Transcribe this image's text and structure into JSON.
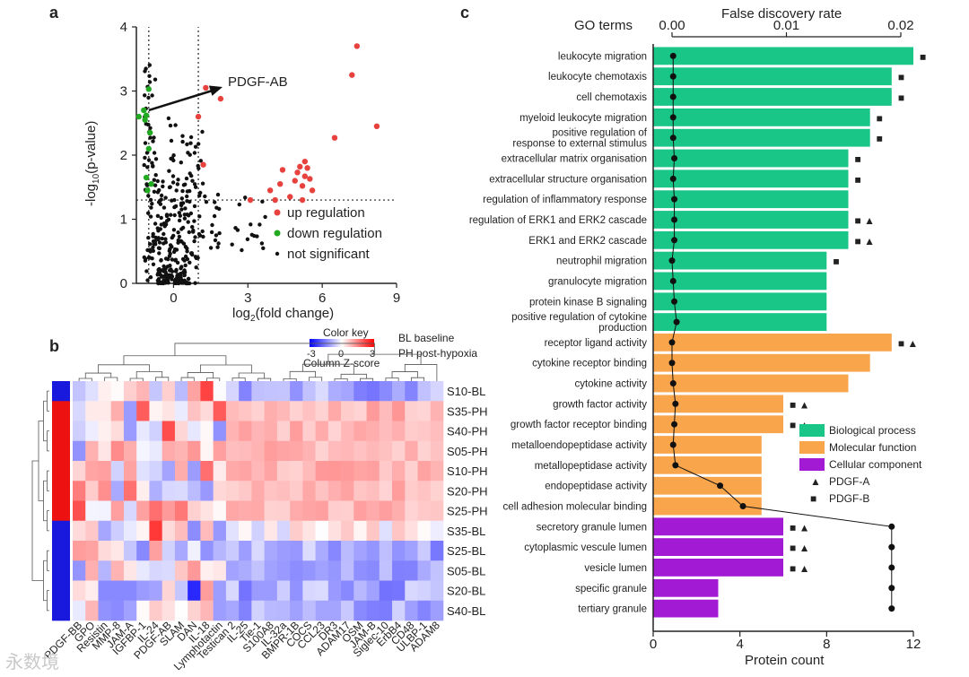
{
  "panel_labels": {
    "a": "a",
    "b": "b",
    "c": "c"
  },
  "watermark": "永数境",
  "chart_data": [
    {
      "id": "volcano",
      "type": "scatter",
      "xlabel": "log2(fold change)",
      "xlabel_main": "log",
      "xlabel_sub": "2",
      "xlabel_rest": "(fold change)",
      "ylabel": "-log10(p-value)",
      "ylabel_main": "-log",
      "ylabel_sub": "10",
      "ylabel_rest": "(p-value)",
      "xlim": [
        -1.5,
        9
      ],
      "ylim": [
        0,
        4
      ],
      "xticks": [
        0,
        3,
        6,
        9
      ],
      "yticks": [
        0,
        1,
        2,
        3,
        4
      ],
      "thresholds": {
        "x": [
          -1,
          1
        ],
        "y": 1.3
      },
      "annotation": "PDGF-AB",
      "annotation_target": [
        1.6,
        3.1
      ],
      "annotation_from": [
        -1.0,
        2.7
      ],
      "colors": {
        "up": "#e8423f",
        "down": "#22aa22",
        "ns": "#111111"
      },
      "legend": [
        {
          "key": "up",
          "label": "up regulation"
        },
        {
          "key": "down",
          "label": "down regulation"
        },
        {
          "key": "ns",
          "label": "not significant"
        }
      ],
      "up": [
        [
          7.4,
          3.7
        ],
        [
          7.2,
          3.25
        ],
        [
          8.2,
          2.45
        ],
        [
          6.5,
          2.27
        ],
        [
          1.0,
          2.6
        ],
        [
          1.2,
          1.85
        ],
        [
          1.9,
          2.88
        ],
        [
          1.3,
          3.05
        ],
        [
          4.4,
          1.77
        ],
        [
          5.3,
          1.9
        ],
        [
          5.1,
          1.82
        ],
        [
          5.4,
          1.8
        ],
        [
          5.0,
          1.73
        ],
        [
          5.3,
          1.67
        ],
        [
          5.5,
          1.63
        ],
        [
          4.9,
          1.6
        ],
        [
          5.2,
          1.52
        ],
        [
          4.3,
          1.55
        ],
        [
          5.6,
          1.45
        ],
        [
          4.7,
          1.35
        ],
        [
          4.1,
          1.3
        ],
        [
          5.2,
          1.3
        ],
        [
          3.1,
          1.3
        ],
        [
          3.9,
          1.45
        ]
      ],
      "down": [
        [
          -1.0,
          3.03
        ],
        [
          -1.1,
          2.62
        ],
        [
          -1.4,
          2.6
        ],
        [
          -1.2,
          2.7
        ],
        [
          -1.0,
          2.1
        ],
        [
          -1.1,
          1.65
        ],
        [
          -0.9,
          1.55
        ],
        [
          -1.05,
          1.45
        ],
        [
          -0.95,
          2.35
        ],
        [
          -1.15,
          2.55
        ]
      ],
      "ns_seed": 7,
      "ns_count": 360
    },
    {
      "id": "heatmap",
      "type": "heatmap",
      "color_key": {
        "title": "Color key",
        "min": -3,
        "max": 3,
        "subtitle": "Column Z-score",
        "tick_min": "-3",
        "tick_zero": "0",
        "tick_max": "3"
      },
      "legend_text": [
        "BL baseline",
        "PH post-hypoxia"
      ],
      "rows": [
        "S10-BL",
        "S35-PH",
        "S40-PH",
        "S05-PH",
        "S10-PH",
        "S20-PH",
        "S25-PH",
        "S35-BL",
        "S25-BL",
        "S05-BL",
        "S20-BL",
        "S40-BL"
      ],
      "row_groups": [
        "BL",
        "PH",
        "PH",
        "PH",
        "PH",
        "PH",
        "PH",
        "BL",
        "BL",
        "BL",
        "BL",
        "BL"
      ],
      "group_colors": {
        "BL": "#1919dd",
        "PH": "#ee1111"
      },
      "columns": [
        "PDGF-BB",
        "GPO",
        "Resistin",
        "MMP-8",
        "JAM-A",
        "IGFBP-1",
        "IL-24",
        "PDGF-AB",
        "SLAM",
        "DAN",
        "IL-18",
        "Lymphotactin",
        "Testican 2",
        "IL-25",
        "Tie-1",
        "S100A8",
        "IL-32a",
        "BMPR-1B",
        "COCS",
        "CCL23",
        "DR3",
        "ADAM17",
        "OSM",
        "JAM-B",
        "Siglec-10",
        "ErbB4",
        "CD48",
        "ULBP-1",
        "ADAM8"
      ]
    },
    {
      "id": "go",
      "type": "bar",
      "title_left": "GO terms",
      "xlabel": "Protein count",
      "xlim": [
        0,
        12
      ],
      "xticks": [
        0,
        4,
        8,
        12
      ],
      "top_axis": {
        "label": "False discovery rate",
        "lim": [
          0,
          0.02
        ],
        "ticks": [
          "0.00",
          "0.01",
          "0.02"
        ]
      },
      "category_colors": {
        "BP": "#19c587",
        "MF": "#f9a54c",
        "CC": "#a21ad4"
      },
      "legend": [
        {
          "key": "BP",
          "label": "Biological process"
        },
        {
          "key": "MF",
          "label": "Molecular function"
        },
        {
          "key": "CC",
          "label": "Cellular component"
        },
        {
          "key": "A",
          "label": "PDGF-A",
          "symbol": "▲"
        },
        {
          "key": "B",
          "label": "PDGF-B",
          "symbol": "■"
        }
      ],
      "terms": [
        {
          "label": "leukocyte migration",
          "cat": "BP",
          "count": 12,
          "fdr": 0.0001,
          "markers": "■"
        },
        {
          "label": "leukocyte chemotaxis",
          "cat": "BP",
          "count": 11,
          "fdr": 0.0001,
          "markers": "■"
        },
        {
          "label": "cell chemotaxis",
          "cat": "BP",
          "count": 11,
          "fdr": 0.0001,
          "markers": "■"
        },
        {
          "label": "myeloid leukocyte migration",
          "cat": "BP",
          "count": 10,
          "fdr": 0.0001,
          "markers": "■"
        },
        {
          "label": "positive regulation of",
          "label2": "response to external stimulus",
          "cat": "BP",
          "count": 10,
          "fdr": 0.0001,
          "markers": "■"
        },
        {
          "label": "extracellular matrix organisation",
          "cat": "BP",
          "count": 9,
          "fdr": 0.0002,
          "markers": "■"
        },
        {
          "label": "extracellular structure organisation",
          "cat": "BP",
          "count": 9,
          "fdr": 0.0001,
          "markers": "■"
        },
        {
          "label": "regulation of inflammatory response",
          "cat": "BP",
          "count": 9,
          "fdr": 0.0002,
          "markers": ""
        },
        {
          "label": "regulation of ERK1 and ERK2 cascade",
          "cat": "BP",
          "count": 9,
          "fdr": 0.0002,
          "markers": "■ ▲"
        },
        {
          "label": "ERK1 and ERK2 cascade",
          "cat": "BP",
          "count": 9,
          "fdr": 0.0002,
          "markers": "■ ▲"
        },
        {
          "label": "neutrophil migration",
          "cat": "BP",
          "count": 8,
          "fdr": 0.0,
          "markers": "■"
        },
        {
          "label": "granulocyte migration",
          "cat": "BP",
          "count": 8,
          "fdr": 0.0001,
          "markers": ""
        },
        {
          "label": "protein kinase B signaling",
          "cat": "BP",
          "count": 8,
          "fdr": 0.0002,
          "markers": ""
        },
        {
          "label": "positive regulation of cytokine",
          "label2": "production",
          "cat": "BP",
          "count": 8,
          "fdr": 0.0004,
          "markers": ""
        },
        {
          "label": "receptor ligand activity",
          "cat": "MF",
          "count": 11,
          "fdr": 0.0,
          "markers": "■ ▲"
        },
        {
          "label": "cytokine receptor binding",
          "cat": "MF",
          "count": 10,
          "fdr": 0.0,
          "markers": ""
        },
        {
          "label": "cytokine activity",
          "cat": "MF",
          "count": 9,
          "fdr": 0.0001,
          "markers": ""
        },
        {
          "label": "growth factor activity",
          "cat": "MF",
          "count": 6,
          "fdr": 0.0003,
          "markers": "■ ▲"
        },
        {
          "label": "growth factor receptor binding",
          "cat": "MF",
          "count": 6,
          "fdr": 0.0002,
          "markers": "■ ▲"
        },
        {
          "label": "metalloendopeptidase activity",
          "cat": "MF",
          "count": 5,
          "fdr": 0.0001,
          "markers": ""
        },
        {
          "label": "metallopeptidase activity",
          "cat": "MF",
          "count": 5,
          "fdr": 0.0003,
          "markers": ""
        },
        {
          "label": "endopeptidase activity",
          "cat": "MF",
          "count": 5,
          "fdr": 0.0042,
          "markers": ""
        },
        {
          "label": "cell adhesion molecular binding",
          "cat": "MF",
          "count": 5,
          "fdr": 0.0062,
          "markers": ""
        },
        {
          "label": "secretory granule lumen",
          "cat": "CC",
          "count": 6,
          "fdr": 0.0192,
          "markers": "■ ▲"
        },
        {
          "label": "cytoplasmic vescule lumen",
          "cat": "CC",
          "count": 6,
          "fdr": 0.0192,
          "markers": "■ ▲"
        },
        {
          "label": "vesicle lumen",
          "cat": "CC",
          "count": 6,
          "fdr": 0.0192,
          "markers": "■ ▲"
        },
        {
          "label": "specific granule",
          "cat": "CC",
          "count": 3,
          "fdr": 0.0192,
          "markers": ""
        },
        {
          "label": "tertiary granule",
          "cat": "CC",
          "count": 3,
          "fdr": 0.0192,
          "markers": ""
        }
      ]
    }
  ]
}
